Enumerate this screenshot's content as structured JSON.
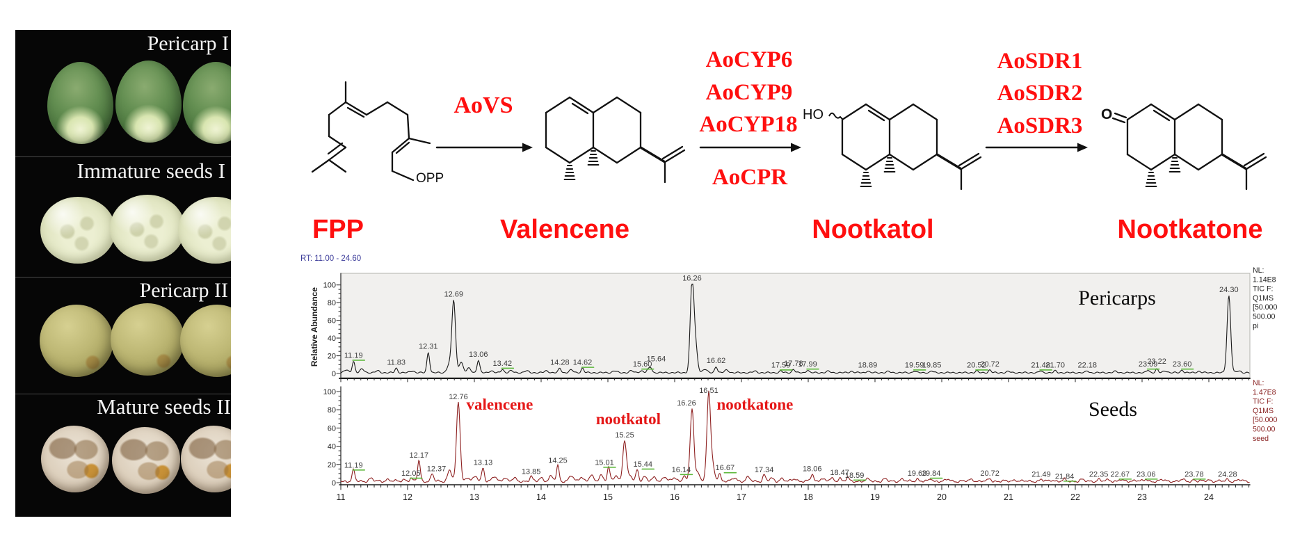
{
  "figure": {
    "photo_panel": {
      "sections": [
        {
          "label": "Pericarp I"
        },
        {
          "label": "Immature seeds I"
        },
        {
          "label": "Pericarp II"
        },
        {
          "label": "Mature seeds II"
        }
      ]
    },
    "pathway": {
      "compounds": [
        {
          "name": "FPP"
        },
        {
          "name": "Valencene"
        },
        {
          "name": "Nootkatol"
        },
        {
          "name": "Nootkatone"
        }
      ],
      "steps": [
        {
          "above": [
            "AoVS"
          ],
          "below": []
        },
        {
          "above": [
            "AoCYP6",
            "AoCYP9",
            "AoCYP18"
          ],
          "below": [
            "AoCPR"
          ]
        },
        {
          "above": [
            "AoSDR1",
            "AoSDR2",
            "AoSDR3"
          ],
          "below": []
        }
      ],
      "structure_labels": {
        "opp": "OPP",
        "ho": "HO",
        "o": "O"
      },
      "enzyme_color": "#ff0000"
    }
  },
  "chart_data": {
    "type": "line",
    "header": "RT: 11.00 - 24.60",
    "ylabel": "Relative Abundance",
    "xlim": [
      11,
      24.6
    ],
    "x_ticks": [
      11,
      12,
      13,
      14,
      15,
      16,
      17,
      18,
      19,
      20,
      21,
      22,
      23,
      24
    ],
    "y_ticks": [
      0,
      20,
      40,
      60,
      80,
      100
    ],
    "panes": [
      {
        "title": "Pericarps",
        "trace_color": "#1a1a1a",
        "bg": "#f1f0ee",
        "info_color": "#222222",
        "info": [
          "NL:",
          "1.14E8",
          "TIC F:",
          "Q1MS",
          "[50.000",
          "500.00",
          "pi"
        ],
        "peaks": [
          {
            "rt": 11.19,
            "h": 13,
            "g": 1
          },
          {
            "rt": 11.83,
            "h": 5
          },
          {
            "rt": 12.31,
            "h": 23
          },
          {
            "rt": 12.69,
            "h": 82
          },
          {
            "rt": 13.06,
            "h": 14
          },
          {
            "rt": 13.42,
            "h": 4,
            "g": 1
          },
          {
            "rt": 14.28,
            "h": 5
          },
          {
            "rt": 14.62,
            "h": 5,
            "g": 1
          },
          {
            "rt": 15.6,
            "h": 3,
            "g": 1,
            "dx": -8
          },
          {
            "rt": 15.64,
            "h": 6,
            "dx": 8,
            "dy": -4
          },
          {
            "rt": 16.26,
            "h": 100
          },
          {
            "rt": 16.62,
            "h": 7
          },
          {
            "rt": 17.59,
            "h": 2,
            "g": 1
          },
          {
            "rt": 17.78,
            "h": 4
          },
          {
            "rt": 17.99,
            "h": 3,
            "g": 1
          },
          {
            "rt": 18.89,
            "h": 2
          },
          {
            "rt": 19.59,
            "h": 2,
            "g": 1
          },
          {
            "rt": 19.85,
            "h": 2
          },
          {
            "rt": 20.52,
            "h": 2,
            "g": 1
          },
          {
            "rt": 20.72,
            "h": 3
          },
          {
            "rt": 21.48,
            "h": 2,
            "g": 1
          },
          {
            "rt": 21.7,
            "h": 2
          },
          {
            "rt": 22.18,
            "h": 2
          },
          {
            "rt": 23.09,
            "h": 3,
            "g": 1
          },
          {
            "rt": 23.22,
            "h": 4,
            "dy": -3
          },
          {
            "rt": 23.6,
            "h": 3,
            "g": 1
          },
          {
            "rt": 24.3,
            "h": 87
          }
        ],
        "bumps": [
          [
            11.08,
            3
          ],
          [
            11.32,
            4
          ],
          [
            11.55,
            2
          ],
          [
            12.07,
            2
          ],
          [
            12.62,
            9
          ],
          [
            12.8,
            12
          ],
          [
            12.92,
            5
          ],
          [
            13.25,
            2
          ],
          [
            13.55,
            2
          ],
          [
            13.78,
            2
          ],
          [
            14.08,
            2
          ],
          [
            14.45,
            3
          ],
          [
            15.1,
            2
          ],
          [
            15.35,
            2
          ],
          [
            15.5,
            2
          ],
          [
            16.31,
            30
          ],
          [
            16.45,
            4
          ],
          [
            16.78,
            3
          ],
          [
            17.2,
            1.5
          ],
          [
            18.3,
            1.5
          ],
          [
            18.65,
            1.5
          ],
          [
            19.2,
            1.2
          ],
          [
            21.0,
            1.2
          ],
          [
            22.6,
            1.3
          ],
          [
            23.35,
            2
          ],
          [
            23.85,
            1.5
          ],
          [
            24.45,
            2
          ]
        ],
        "annotations": []
      },
      {
        "title": "Seeds",
        "trace_color": "#8e2121",
        "bg": "#ffffff",
        "info_color": "#8b2424",
        "info": [
          "NL:",
          "1.47E8",
          "TIC F:",
          "Q1MS",
          "[50.000",
          "500.00",
          "seed"
        ],
        "peaks": [
          {
            "rt": 11.19,
            "h": 12,
            "g": 1
          },
          {
            "rt": 12.05,
            "h": 3,
            "g": 1
          },
          {
            "rt": 12.17,
            "h": 23
          },
          {
            "rt": 12.37,
            "h": 8,
            "dx": 6
          },
          {
            "rt": 12.76,
            "h": 87
          },
          {
            "rt": 13.13,
            "h": 15
          },
          {
            "rt": 13.85,
            "h": 5
          },
          {
            "rt": 14.25,
            "h": 17
          },
          {
            "rt": 15.01,
            "h": 15,
            "g": 1,
            "dx": -6
          },
          {
            "rt": 15.25,
            "h": 45
          },
          {
            "rt": 15.44,
            "h": 13,
            "g": 1,
            "dx": 8
          },
          {
            "rt": 16.14,
            "h": 7,
            "g": 1,
            "dx": -4
          },
          {
            "rt": 16.26,
            "h": 80,
            "dx": -8
          },
          {
            "rt": 16.51,
            "h": 97
          },
          {
            "rt": 16.67,
            "h": 9,
            "g": 1,
            "dx": 8
          },
          {
            "rt": 17.34,
            "h": 7
          },
          {
            "rt": 18.06,
            "h": 8
          },
          {
            "rt": 18.47,
            "h": 4
          },
          {
            "rt": 18.59,
            "h": 4,
            "g": 1,
            "dx": 10,
            "dy": 4
          },
          {
            "rt": 19.63,
            "h": 3
          },
          {
            "rt": 19.84,
            "h": 3,
            "g": 1
          },
          {
            "rt": 20.72,
            "h": 3
          },
          {
            "rt": 21.49,
            "h": 2
          },
          {
            "rt": 21.84,
            "h": 2,
            "g": 1,
            "dy": 3
          },
          {
            "rt": 22.35,
            "h": 2
          },
          {
            "rt": 22.67,
            "h": 2,
            "g": 1
          },
          {
            "rt": 23.06,
            "h": 2,
            "g": 1
          },
          {
            "rt": 23.78,
            "h": 2,
            "g": 1
          },
          {
            "rt": 24.28,
            "h": 2
          }
        ],
        "bumps": [
          [
            11.45,
            3
          ],
          [
            11.7,
            2
          ],
          [
            11.95,
            2
          ],
          [
            12.63,
            12
          ],
          [
            12.9,
            4
          ],
          [
            13.02,
            5
          ],
          [
            13.3,
            5
          ],
          [
            13.45,
            4
          ],
          [
            13.6,
            3
          ],
          [
            14.0,
            4
          ],
          [
            14.15,
            5
          ],
          [
            14.45,
            6
          ],
          [
            14.6,
            5
          ],
          [
            14.75,
            6
          ],
          [
            14.9,
            7
          ],
          [
            15.12,
            6
          ],
          [
            15.33,
            6
          ],
          [
            15.55,
            5
          ],
          [
            15.7,
            4
          ],
          [
            15.85,
            5
          ],
          [
            16.0,
            4
          ],
          [
            16.35,
            10
          ],
          [
            16.57,
            15
          ],
          [
            16.9,
            4
          ],
          [
            17.1,
            4
          ],
          [
            17.45,
            3
          ],
          [
            17.6,
            3
          ],
          [
            17.8,
            3
          ],
          [
            18.2,
            3
          ],
          [
            18.35,
            3
          ],
          [
            18.9,
            2
          ],
          [
            19.15,
            2
          ],
          [
            19.4,
            2
          ],
          [
            20.1,
            2
          ],
          [
            20.45,
            2
          ],
          [
            21.1,
            1.5
          ],
          [
            21.65,
            1.5
          ],
          [
            22.1,
            1.5
          ],
          [
            22.5,
            1.5
          ],
          [
            22.9,
            1.5
          ],
          [
            23.3,
            1.5
          ],
          [
            23.6,
            1.5
          ],
          [
            24.0,
            1.5
          ],
          [
            24.45,
            1.5
          ]
        ],
        "annotations": [
          {
            "text": "valencene",
            "rt": 12.88,
            "h": 80
          },
          {
            "text": "nootkatol",
            "rt": 14.82,
            "h": 64
          },
          {
            "text": "nootkatone",
            "rt": 16.63,
            "h": 80
          }
        ]
      }
    ]
  }
}
